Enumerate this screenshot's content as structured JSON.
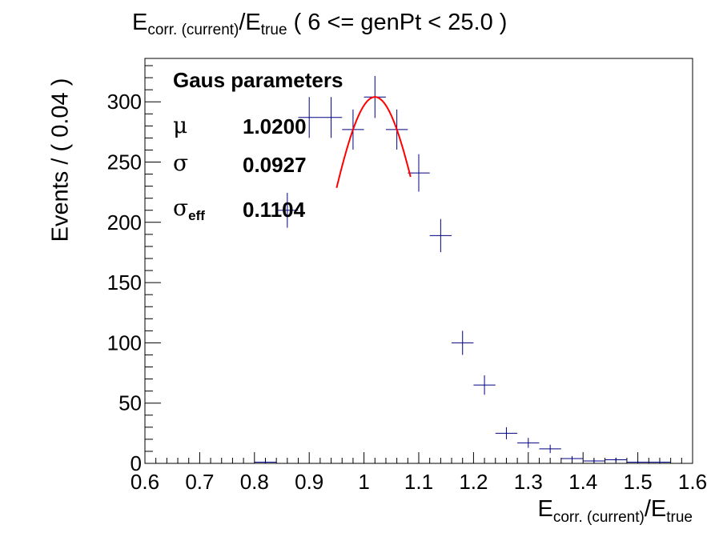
{
  "header": {
    "title_main": "E",
    "title_sub1": "corr. (current)",
    "title_mid": "/E",
    "title_sub2": "true",
    "title_rest": " ( 6 <= genPt < 25.0 )"
  },
  "axes": {
    "x_main": "E",
    "x_sub1": "corr. (current)",
    "x_mid": "/E",
    "x_sub2": "true",
    "y_label": "Events / ( 0.04 )"
  },
  "stats": {
    "heading": "Gaus parameters",
    "mu_symbol": "μ",
    "mu_value": "1.0200",
    "sigma_symbol": "σ",
    "sigma_value": "0.0927",
    "sigma_eff_symbol": "σ",
    "sigma_eff_sub": "eff",
    "sigma_eff_value": "0.1104"
  },
  "colors": {
    "points": "#000080",
    "fit": "#ff0000"
  },
  "chart_data": {
    "type": "scatter",
    "xlim": [
      0.6,
      1.6
    ],
    "ylim": [
      0,
      336
    ],
    "bin_width": 0.04,
    "x_ticks": [
      0.6,
      0.7,
      0.8,
      0.9,
      1.0,
      1.1,
      1.2,
      1.3,
      1.4,
      1.5,
      1.6
    ],
    "x_tick_labels": [
      "0.6",
      "0.7",
      "0.8",
      "0.9",
      "1",
      "1.1",
      "1.2",
      "1.3",
      "1.4",
      "1.5",
      "1.6"
    ],
    "y_ticks": [
      0,
      50,
      100,
      150,
      200,
      250,
      300
    ],
    "y_tick_labels": [
      "0",
      "50",
      "100",
      "150",
      "200",
      "250",
      "300"
    ],
    "series": [
      {
        "x": [
          0.82,
          0.86,
          0.9,
          0.94,
          0.98,
          1.02,
          1.06,
          1.1,
          1.14,
          1.18,
          1.22,
          1.26,
          1.3,
          1.34,
          1.38,
          1.42,
          1.46,
          1.5,
          1.54
        ],
        "y": [
          1,
          210,
          287,
          287,
          277,
          304,
          277,
          241,
          189,
          100,
          65,
          25,
          17,
          12,
          4,
          2,
          3,
          1,
          1
        ]
      }
    ],
    "fit": {
      "type": "gaussian",
      "amplitude": 304,
      "mean": 1.02,
      "sigma": 0.0927,
      "x_range": [
        0.95,
        1.085
      ]
    }
  }
}
